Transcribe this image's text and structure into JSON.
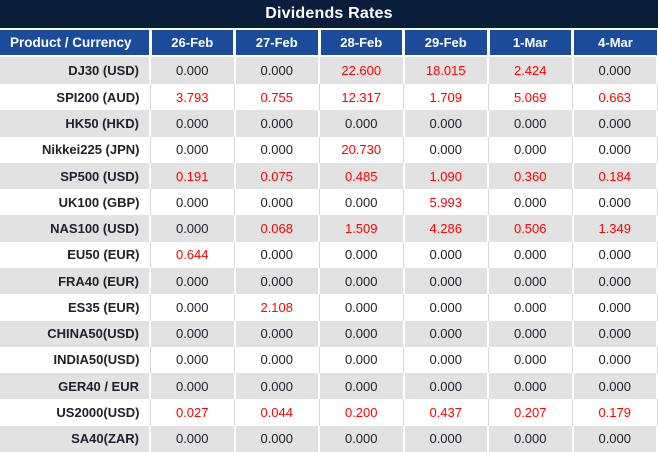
{
  "title": "Dividends Rates",
  "colors": {
    "title_bar_background": "#0a1e3c",
    "header_row_background": "#1b4c9c",
    "header_text": "#ffffff",
    "row_alternate_background": "#e2e2e2",
    "row_background": "#ffffff",
    "zero_value_text": "#21212b",
    "nonzero_value_text": "#ff0000",
    "cell_divider_light": "#d9d9d9",
    "cell_divider_white": "#ffffff"
  },
  "chart_data": {
    "type": "table",
    "title": "Dividends Rates",
    "columns": [
      "Product / Currency",
      "26-Feb",
      "27-Feb",
      "28-Feb",
      "29-Feb",
      "1-Mar",
      "4-Mar"
    ],
    "rows": [
      {
        "product": "DJ30 (USD)",
        "values": [
          "0.000",
          "0.000",
          "22.600",
          "18.015",
          "2.424",
          "0.000"
        ]
      },
      {
        "product": "SPI200 (AUD)",
        "values": [
          "3.793",
          "0.755",
          "12.317",
          "1.709",
          "5.069",
          "0.663"
        ]
      },
      {
        "product": "HK50 (HKD)",
        "values": [
          "0.000",
          "0.000",
          "0.000",
          "0.000",
          "0.000",
          "0.000"
        ]
      },
      {
        "product": "Nikkei225 (JPN)",
        "values": [
          "0.000",
          "0.000",
          "20.730",
          "0.000",
          "0.000",
          "0.000"
        ]
      },
      {
        "product": "SP500 (USD)",
        "values": [
          "0.191",
          "0.075",
          "0.485",
          "1.090",
          "0.360",
          "0.184"
        ]
      },
      {
        "product": "UK100 (GBP)",
        "values": [
          "0.000",
          "0.000",
          "0.000",
          "5.993",
          "0.000",
          "0.000"
        ]
      },
      {
        "product": "NAS100 (USD)",
        "values": [
          "0.000",
          "0.068",
          "1.509",
          "4.286",
          "0.506",
          "1.349"
        ]
      },
      {
        "product": "EU50 (EUR)",
        "values": [
          "0.644",
          "0.000",
          "0.000",
          "0.000",
          "0.000",
          "0.000"
        ]
      },
      {
        "product": "FRA40 (EUR)",
        "values": [
          "0.000",
          "0.000",
          "0.000",
          "0.000",
          "0.000",
          "0.000"
        ]
      },
      {
        "product": "ES35 (EUR)",
        "values": [
          "0.000",
          "2.108",
          "0.000",
          "0.000",
          "0.000",
          "0.000"
        ]
      },
      {
        "product": "CHINA50(USD)",
        "values": [
          "0.000",
          "0.000",
          "0.000",
          "0.000",
          "0.000",
          "0.000"
        ]
      },
      {
        "product": "INDIA50(USD)",
        "values": [
          "0.000",
          "0.000",
          "0.000",
          "0.000",
          "0.000",
          "0.000"
        ]
      },
      {
        "product": "GER40 / EUR",
        "values": [
          "0.000",
          "0.000",
          "0.000",
          "0.000",
          "0.000",
          "0.000"
        ]
      },
      {
        "product": "US2000(USD)",
        "values": [
          "0.027",
          "0.044",
          "0.200",
          "0.437",
          "0.207",
          "0.179"
        ]
      },
      {
        "product": "SA40(ZAR)",
        "values": [
          "0.000",
          "0.000",
          "0.000",
          "0.000",
          "0.000",
          "0.000"
        ]
      }
    ]
  }
}
